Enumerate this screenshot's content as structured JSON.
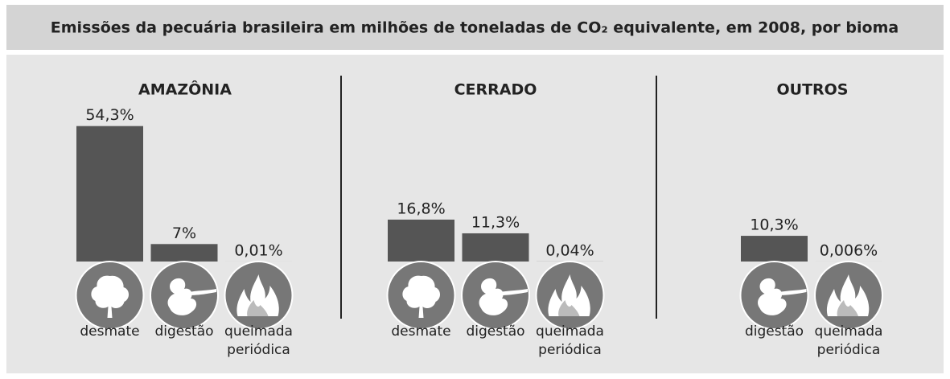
{
  "title": "Emissões da pecuária brasileira em milhões de toneladas de CO₂ equivalente, em 2008, por bioma",
  "chart_data": [
    {
      "type": "bar",
      "title": "AMAZÔNIA",
      "categories": [
        "desmate",
        "digestão",
        "queimada periódica"
      ],
      "values": [
        54.3,
        7,
        0.01
      ],
      "value_labels": [
        "54,3%",
        "7%",
        "0,01%"
      ],
      "color": "#555555"
    },
    {
      "type": "bar",
      "title": "CERRADO",
      "categories": [
        "desmate",
        "digestão",
        "queimada periódica"
      ],
      "values": [
        16.8,
        11.3,
        0.04
      ],
      "value_labels": [
        "16,8%",
        "11,3%",
        "0,04%"
      ],
      "color": "#555555"
    },
    {
      "type": "bar",
      "title": "OUTROS",
      "categories": [
        "digestão",
        "queimada periódica"
      ],
      "values": [
        10.3,
        0.006
      ],
      "value_labels": [
        "10,3%",
        "0,006%"
      ],
      "color": "#555555"
    }
  ]
}
